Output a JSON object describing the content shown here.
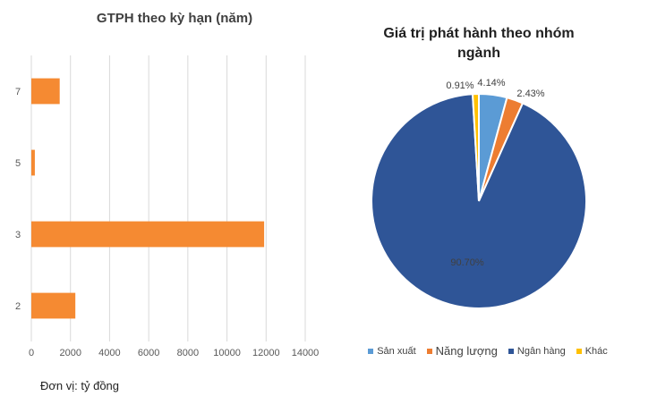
{
  "note": "Đơn vị: tỷ đồng",
  "chart_data": [
    {
      "type": "bar",
      "orientation": "horizontal",
      "title": "GTPH theo kỳ hạn (năm)",
      "categories": [
        "7",
        "5",
        "3",
        "2"
      ],
      "values": [
        1450,
        180,
        11900,
        2250
      ],
      "xlim": [
        0,
        14000
      ],
      "xticks": [
        0,
        2000,
        4000,
        6000,
        8000,
        10000,
        12000,
        14000
      ],
      "grid": true,
      "color": "#F58A32"
    },
    {
      "type": "pie",
      "title": "Giá trị phát hành theo nhóm ngành",
      "legend_position": "bottom",
      "slices": [
        {
          "name": "Sản xuất",
          "value": 4.14,
          "label": "4.14%",
          "color": "#5B9BD5"
        },
        {
          "name": "Năng lượng",
          "value": 2.43,
          "label": "2.43%",
          "color": "#ED7D31"
        },
        {
          "name": "Ngân hàng",
          "value": 90.7,
          "label": "90.70%",
          "color": "#2F5597"
        },
        {
          "name": "Khác",
          "value": 0.91,
          "label": "0.91%",
          "color": "#FFC000"
        }
      ]
    }
  ]
}
